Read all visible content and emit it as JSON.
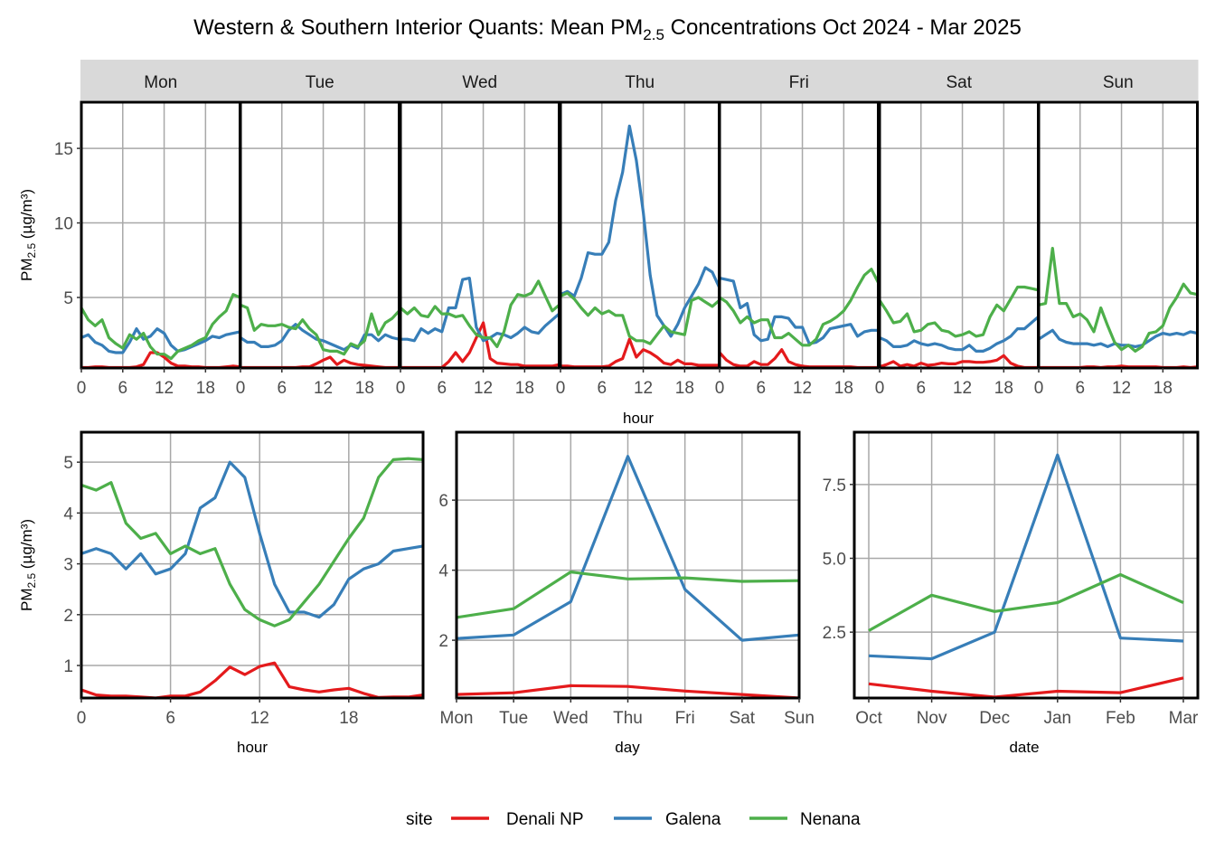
{
  "title": {
    "prefix": "Western & Southern Interior Quants: Mean PM",
    "sub": "2.5",
    "suffix": " Concentrations Oct 2024 - Mar 2025"
  },
  "ylabel": {
    "prefix": "PM",
    "sub": "2.5",
    "suffix": " (µg/m³)"
  },
  "legend": {
    "title": "site",
    "items": [
      {
        "label": "Denali NP",
        "color": "#E41A1C"
      },
      {
        "label": "Galena",
        "color": "#377EB8"
      },
      {
        "label": "Nenana",
        "color": "#4DAF4A"
      }
    ]
  },
  "chart_data": [
    {
      "type": "line",
      "facet_by": "day",
      "facets": [
        "Mon",
        "Tue",
        "Wed",
        "Thu",
        "Fri",
        "Sat",
        "Sun"
      ],
      "xlabel": "hour",
      "ylabel": "PM2.5 (µg/m³)",
      "xlim": [
        0,
        23
      ],
      "ylim": [
        0.27,
        18.1
      ],
      "xticks": [
        "0",
        "6",
        "12",
        "18"
      ],
      "xtick_values": [
        0,
        6,
        12,
        18
      ],
      "yticks": [
        "5",
        "10",
        "15"
      ],
      "ytick_values": [
        5,
        10,
        15
      ],
      "grid": true,
      "series": [
        {
          "name": "Denali NP",
          "color": "#E41A1C",
          "values": [
            [
              0.3,
              0.3,
              0.35,
              0.35,
              0.3,
              0.3,
              0.3,
              0.3,
              0.35,
              0.5,
              1.3,
              1.3,
              1.0,
              0.6,
              0.4,
              0.4,
              0.35,
              0.35,
              0.3,
              0.3,
              0.3,
              0.35,
              0.4,
              0.35
            ],
            [
              0.3,
              0.3,
              0.3,
              0.3,
              0.3,
              0.3,
              0.3,
              0.3,
              0.3,
              0.35,
              0.35,
              0.55,
              0.8,
              1.0,
              0.5,
              0.8,
              0.6,
              0.5,
              0.45,
              0.4,
              0.35,
              0.3,
              0.3,
              0.3
            ],
            [
              0.3,
              0.3,
              0.3,
              0.3,
              0.3,
              0.3,
              0.3,
              0.7,
              1.3,
              0.7,
              1.3,
              2.3,
              3.3,
              0.9,
              0.6,
              0.55,
              0.5,
              0.5,
              0.4,
              0.4,
              0.4,
              0.4,
              0.4,
              0.5
            ],
            [
              0.4,
              0.4,
              0.35,
              0.35,
              0.35,
              0.35,
              0.35,
              0.4,
              0.7,
              0.9,
              2.2,
              1.0,
              1.5,
              1.3,
              1.0,
              0.6,
              0.5,
              0.8,
              0.55,
              0.55,
              0.45,
              0.45,
              0.45,
              0.45
            ],
            [
              1.3,
              0.8,
              0.5,
              0.4,
              0.4,
              0.7,
              0.5,
              0.5,
              0.9,
              1.5,
              0.7,
              0.5,
              0.4,
              0.35,
              0.35,
              0.35,
              0.35,
              0.35,
              0.35,
              0.35,
              0.3,
              0.3,
              0.3,
              0.3
            ],
            [
              0.35,
              0.5,
              0.7,
              0.4,
              0.5,
              0.4,
              0.6,
              0.45,
              0.5,
              0.6,
              0.55,
              0.55,
              0.7,
              0.7,
              0.65,
              0.65,
              0.7,
              0.8,
              1.1,
              0.6,
              0.4,
              0.3,
              0.3,
              0.3
            ],
            [
              0.3,
              0.3,
              0.3,
              0.3,
              0.3,
              0.3,
              0.3,
              0.35,
              0.35,
              0.3,
              0.35,
              0.35,
              0.4,
              0.35,
              0.35,
              0.35,
              0.35,
              0.35,
              0.3,
              0.3,
              0.3,
              0.35,
              0.3,
              0.35
            ]
          ]
        },
        {
          "name": "Galena",
          "color": "#377EB8",
          "values": [
            [
              2.3,
              2.5,
              2.0,
              1.8,
              1.4,
              1.3,
              1.3,
              2.0,
              2.9,
              2.2,
              2.4,
              2.9,
              2.6,
              1.8,
              1.4,
              1.5,
              1.7,
              1.9,
              2.1,
              2.4,
              2.3,
              2.5,
              2.6,
              2.7
            ],
            [
              2.3,
              2.0,
              2.0,
              1.7,
              1.7,
              1.8,
              2.1,
              2.8,
              3.2,
              2.8,
              2.5,
              2.2,
              2.1,
              1.9,
              1.7,
              1.5,
              1.8,
              1.6,
              2.5,
              2.5,
              2.1,
              2.5,
              2.3,
              2.2
            ],
            [
              2.2,
              2.2,
              2.1,
              2.9,
              2.6,
              2.9,
              2.7,
              4.3,
              4.3,
              6.2,
              6.3,
              3.0,
              2.1,
              2.3,
              2.6,
              2.5,
              2.3,
              2.6,
              3.0,
              2.7,
              2.6,
              3.1,
              3.5,
              3.9
            ],
            [
              5.2,
              5.4,
              5.1,
              6.3,
              8.0,
              7.9,
              7.9,
              8.7,
              11.5,
              13.4,
              16.5,
              14.2,
              10.7,
              6.5,
              3.8,
              3.1,
              2.4,
              3.2,
              4.3,
              5.1,
              5.9,
              7.0,
              6.7,
              5.7
            ],
            [
              6.3,
              6.2,
              6.1,
              4.3,
              4.6,
              2.5,
              2.1,
              2.2,
              3.7,
              3.7,
              3.6,
              3.0,
              3.0,
              1.9,
              2.0,
              2.3,
              2.9,
              3.0,
              3.1,
              3.2,
              2.4,
              2.7,
              2.8,
              2.8
            ],
            [
              2.3,
              2.1,
              1.7,
              1.7,
              1.8,
              2.1,
              1.9,
              1.8,
              1.9,
              1.8,
              1.6,
              1.5,
              1.5,
              1.8,
              1.4,
              1.4,
              1.6,
              1.9,
              2.1,
              2.4,
              2.9,
              2.9,
              3.3,
              3.7
            ],
            [
              2.2,
              2.5,
              2.8,
              2.2,
              2.0,
              1.9,
              1.9,
              1.9,
              1.8,
              1.9,
              1.7,
              1.9,
              1.8,
              1.8,
              1.7,
              1.8,
              2.1,
              2.4,
              2.6,
              2.5,
              2.6,
              2.5,
              2.7,
              2.6
            ]
          ]
        },
        {
          "name": "Nenana",
          "color": "#4DAF4A",
          "values": [
            [
              4.3,
              3.5,
              3.1,
              3.5,
              2.3,
              1.9,
              1.6,
              2.5,
              2.2,
              2.6,
              1.7,
              1.2,
              1.2,
              0.9,
              1.4,
              1.6,
              1.8,
              2.1,
              2.3,
              3.2,
              3.7,
              4.1,
              5.2,
              5.0
            ],
            [
              4.5,
              4.3,
              2.8,
              3.2,
              3.1,
              3.1,
              3.2,
              3.0,
              2.9,
              3.5,
              2.9,
              2.5,
              1.5,
              1.4,
              1.4,
              1.2,
              1.9,
              1.7,
              2.1,
              3.9,
              2.5,
              3.3,
              3.6,
              4.1
            ],
            [
              4.3,
              3.9,
              4.3,
              3.8,
              3.7,
              4.4,
              3.9,
              3.9,
              3.7,
              3.8,
              3.1,
              2.5,
              2.3,
              2.3,
              1.7,
              2.7,
              4.5,
              5.2,
              5.1,
              5.3,
              6.1,
              5.1,
              4.1,
              4.5
            ],
            [
              5.1,
              5.3,
              4.9,
              4.3,
              3.8,
              4.3,
              3.9,
              4.1,
              3.8,
              3.8,
              2.4,
              2.1,
              2.1,
              1.9,
              2.5,
              3.1,
              2.7,
              2.6,
              2.5,
              4.8,
              5.0,
              4.7,
              4.4,
              4.8
            ],
            [
              5.0,
              4.7,
              4.1,
              3.3,
              3.7,
              3.3,
              3.5,
              3.5,
              2.3,
              2.3,
              2.6,
              2.2,
              1.8,
              1.8,
              2.2,
              3.2,
              3.4,
              3.7,
              4.1,
              4.8,
              5.7,
              6.5,
              6.9,
              6.0
            ],
            [
              4.8,
              4.1,
              3.3,
              3.4,
              3.9,
              2.7,
              2.8,
              3.2,
              3.3,
              2.8,
              2.7,
              2.4,
              2.5,
              2.7,
              2.4,
              2.5,
              3.7,
              4.5,
              4.1,
              4.9,
              5.7,
              5.7,
              5.6,
              5.5
            ],
            [
              4.5,
              4.6,
              8.3,
              4.6,
              4.6,
              3.7,
              3.9,
              3.5,
              2.7,
              4.3,
              3.1,
              2.0,
              1.5,
              1.8,
              1.4,
              1.7,
              2.6,
              2.7,
              3.1,
              4.3,
              5.0,
              5.9,
              5.3,
              5.2
            ]
          ]
        }
      ]
    },
    {
      "type": "line",
      "xlabel": "hour",
      "ylabel": "PM2.5 (µg/m³)",
      "x": [
        0,
        1,
        2,
        3,
        4,
        5,
        6,
        7,
        8,
        9,
        10,
        11,
        12,
        13,
        14,
        15,
        16,
        17,
        18,
        19,
        20,
        21,
        22,
        23
      ],
      "xlim": [
        0,
        23
      ],
      "ylim": [
        0.36,
        5.59
      ],
      "xticks": [
        "0",
        "6",
        "12",
        "18"
      ],
      "xtick_values": [
        0,
        6,
        12,
        18
      ],
      "yticks": [
        "1",
        "2",
        "3",
        "4",
        "5"
      ],
      "ytick_values": [
        1,
        2,
        3,
        4,
        5
      ],
      "grid": true,
      "series": [
        {
          "name": "Denali NP",
          "color": "#E41A1C",
          "values": [
            0.52,
            0.42,
            0.4,
            0.4,
            0.38,
            0.36,
            0.4,
            0.4,
            0.48,
            0.7,
            0.97,
            0.82,
            0.98,
            1.05,
            0.58,
            0.52,
            0.48,
            0.52,
            0.55,
            0.45,
            0.37,
            0.38,
            0.38,
            0.42
          ]
        },
        {
          "name": "Galena",
          "color": "#377EB8",
          "values": [
            3.2,
            3.3,
            3.2,
            2.9,
            3.2,
            2.8,
            2.9,
            3.2,
            4.1,
            4.3,
            5.0,
            4.7,
            3.6,
            2.6,
            2.05,
            2.05,
            1.95,
            2.2,
            2.7,
            2.9,
            3.0,
            3.25,
            3.3,
            3.35
          ]
        },
        {
          "name": "Nenana",
          "color": "#4DAF4A",
          "values": [
            4.55,
            4.45,
            4.6,
            3.8,
            3.5,
            3.6,
            3.2,
            3.35,
            3.2,
            3.3,
            2.6,
            2.1,
            1.9,
            1.78,
            1.9,
            2.25,
            2.6,
            3.05,
            3.5,
            3.9,
            4.7,
            5.05,
            5.07,
            5.05
          ]
        }
      ]
    },
    {
      "type": "line",
      "xlabel": "day",
      "categories": [
        "Mon",
        "Tue",
        "Wed",
        "Thu",
        "Fri",
        "Sat",
        "Sun"
      ],
      "ylim": [
        0.35,
        7.94
      ],
      "yticks": [
        "2",
        "4",
        "6"
      ],
      "ytick_values": [
        2,
        4,
        6
      ],
      "grid": true,
      "series": [
        {
          "name": "Denali NP",
          "color": "#E41A1C",
          "values": [
            0.45,
            0.5,
            0.7,
            0.68,
            0.55,
            0.45,
            0.35
          ]
        },
        {
          "name": "Galena",
          "color": "#377EB8",
          "values": [
            2.05,
            2.15,
            3.1,
            7.25,
            3.45,
            2.0,
            2.15
          ]
        },
        {
          "name": "Nenana",
          "color": "#4DAF4A",
          "values": [
            2.65,
            2.9,
            3.95,
            3.75,
            3.78,
            3.68,
            3.7
          ]
        }
      ]
    },
    {
      "type": "line",
      "xlabel": "date",
      "categories": [
        "Oct",
        "Nov",
        "Dec",
        "Jan",
        "Feb",
        "Mar"
      ],
      "ylim": [
        0.27,
        9.27
      ],
      "yticks": [
        "2.5",
        "5.0",
        "7.5"
      ],
      "ytick_values": [
        2.5,
        5.0,
        7.5
      ],
      "grid": true,
      "series": [
        {
          "name": "Denali NP",
          "color": "#E41A1C",
          "values": [
            0.75,
            0.5,
            0.3,
            0.5,
            0.45,
            0.95
          ]
        },
        {
          "name": "Galena",
          "color": "#377EB8",
          "values": [
            1.7,
            1.6,
            2.5,
            8.5,
            2.3,
            2.2
          ]
        },
        {
          "name": "Nenana",
          "color": "#4DAF4A",
          "values": [
            2.55,
            3.75,
            3.2,
            3.5,
            4.45,
            3.5
          ]
        }
      ]
    }
  ]
}
